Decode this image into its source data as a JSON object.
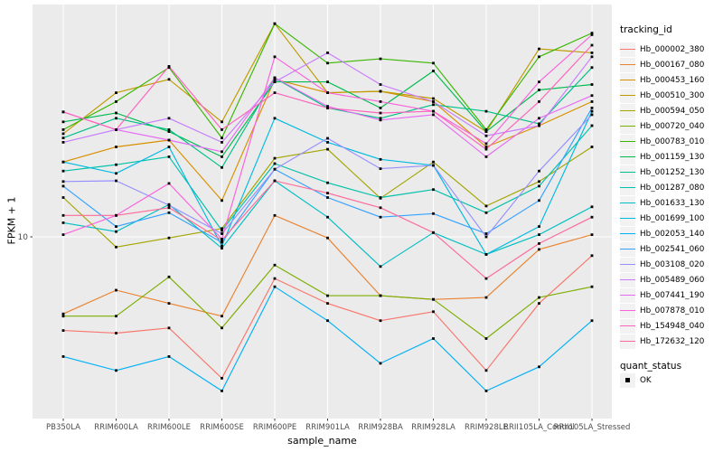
{
  "figure": {
    "background": "#FFFFFF",
    "panel_background": "#EBEBEB",
    "grid_color": "#FFFFFF",
    "tick_color": "#333333",
    "tick_text_color": "#4D4D4D",
    "point_color": "#000000"
  },
  "chart_data": {
    "type": "line",
    "title": "",
    "xlabel": "sample_name",
    "ylabel": "FPKM + 1",
    "y_scale": "log10",
    "ylim": [
      2,
      80
    ],
    "grid": true,
    "legend_position": "right",
    "y_ticks": [
      {
        "value": 10,
        "label": "10"
      }
    ],
    "point_marker": {
      "shape": "square",
      "color": "#000000",
      "size": 2.8
    },
    "categories": [
      "PB350LA",
      "RRIM600LA",
      "RRIM600LE",
      "RRIM600SE",
      "RRIM600PE",
      "RRIM901LA",
      "RRIM928BA",
      "RRIM928LA",
      "RRIM928LE",
      "RRII105LA_Control",
      "RRII105LA_Stressed"
    ],
    "series": [
      {
        "name": "Hb_000002_380",
        "color": "#F8766D",
        "values": [
          4.2,
          4.1,
          4.3,
          2.7,
          6.8,
          5.4,
          4.6,
          5.0,
          2.9,
          5.4,
          8.4
        ]
      },
      {
        "name": "Hb_000167_080",
        "color": "#EA8331",
        "values": [
          4.9,
          6.1,
          5.4,
          4.8,
          12.2,
          9.9,
          5.8,
          5.6,
          5.7,
          8.9,
          10.2
        ]
      },
      {
        "name": "Hb_000453_160",
        "color": "#D89000",
        "values": [
          20,
          23,
          24.5,
          14,
          43,
          38,
          38.5,
          35,
          23,
          28,
          35
        ]
      },
      {
        "name": "Hb_000510_300",
        "color": "#C09B00",
        "values": [
          26,
          38,
          43,
          29,
          72,
          38,
          38.5,
          36,
          26.5,
          57,
          55
        ]
      },
      {
        "name": "Hb_000594_050",
        "color": "#A3A500",
        "values": [
          14.4,
          9.1,
          9.9,
          10.8,
          20.7,
          22.5,
          14.3,
          20,
          13.3,
          16.7,
          23
        ]
      },
      {
        "name": "Hb_000720_040",
        "color": "#7CAE00",
        "values": [
          4.8,
          4.8,
          6.9,
          4.3,
          7.7,
          5.8,
          5.8,
          5.6,
          3.9,
          5.7,
          6.3
        ]
      },
      {
        "name": "Hb_000783_010",
        "color": "#39B600",
        "values": [
          27,
          35,
          48,
          25,
          72,
          50,
          52,
          50,
          27,
          53,
          66
        ]
      },
      {
        "name": "Hb_001159_130",
        "color": "#00BB4E",
        "values": [
          29,
          31.5,
          26.5,
          21,
          42,
          42,
          33,
          46.5,
          26.5,
          39,
          41
        ]
      },
      {
        "name": "Hb_001252_130",
        "color": "#00C087",
        "values": [
          25,
          30,
          27,
          19,
          43.5,
          33,
          30,
          34,
          32,
          28.5,
          48
        ]
      },
      {
        "name": "Hb_001287_080",
        "color": "#00C1A9",
        "values": [
          18.4,
          19.5,
          21,
          10.6,
          19.7,
          16.5,
          14.4,
          15.5,
          12.5,
          16,
          28
        ]
      },
      {
        "name": "Hb_001633_130",
        "color": "#00BFC4",
        "values": [
          11.4,
          10.5,
          13.5,
          9.0,
          16.8,
          12.0,
          7.6,
          10.4,
          8.5,
          10.2,
          13.2
        ]
      },
      {
        "name": "Hb_001699_100",
        "color": "#00BAE0",
        "values": [
          20,
          18,
          23,
          9.2,
          30,
          24,
          20.5,
          19.4,
          8.5,
          11,
          32
        ]
      },
      {
        "name": "Hb_002053_140",
        "color": "#00B0F6",
        "values": [
          3.3,
          2.9,
          3.3,
          2.4,
          6.3,
          4.6,
          3.1,
          3.9,
          2.4,
          3.0,
          4.6
        ]
      },
      {
        "name": "Hb_002541_060",
        "color": "#35A2FF",
        "values": [
          16,
          11,
          12.5,
          9.5,
          18.7,
          14.4,
          12,
          12.4,
          10.3,
          14,
          33
        ]
      },
      {
        "name": "Hb_003108_020",
        "color": "#9590FF",
        "values": [
          16.7,
          16.8,
          13.4,
          10.3,
          18.7,
          24.9,
          18.8,
          19.4,
          10,
          18.4,
          31
        ]
      },
      {
        "name": "Hb_005489_060",
        "color": "#C77CFF",
        "values": [
          24,
          27,
          30,
          24,
          42,
          55,
          41,
          35,
          25.5,
          28,
          53
        ]
      },
      {
        "name": "Hb_007441_190",
        "color": "#E76BF3",
        "values": [
          31.8,
          27,
          24.5,
          22,
          43.7,
          33.5,
          29.5,
          31,
          21,
          30,
          37
        ]
      },
      {
        "name": "Hb_007878_010",
        "color": "#FA62DB",
        "values": [
          10.2,
          12.2,
          16.4,
          9.8,
          53,
          38,
          35,
          32,
          23.7,
          42,
          65
        ]
      },
      {
        "name": "Hb_154948_040",
        "color": "#FF62BC",
        "values": [
          31.8,
          27,
          48.5,
          27,
          38,
          33,
          31.5,
          32,
          22.5,
          35,
          59
        ]
      },
      {
        "name": "Hb_172632_120",
        "color": "#FF6A98",
        "values": [
          12.2,
          12.2,
          13.1,
          9.7,
          16.8,
          15,
          13.1,
          10.4,
          6.8,
          9.4,
          12
        ]
      }
    ]
  },
  "legend": {
    "tracking_title": "tracking_id",
    "quant_title": "quant_status",
    "quant_items": [
      {
        "label": "OK"
      }
    ]
  }
}
